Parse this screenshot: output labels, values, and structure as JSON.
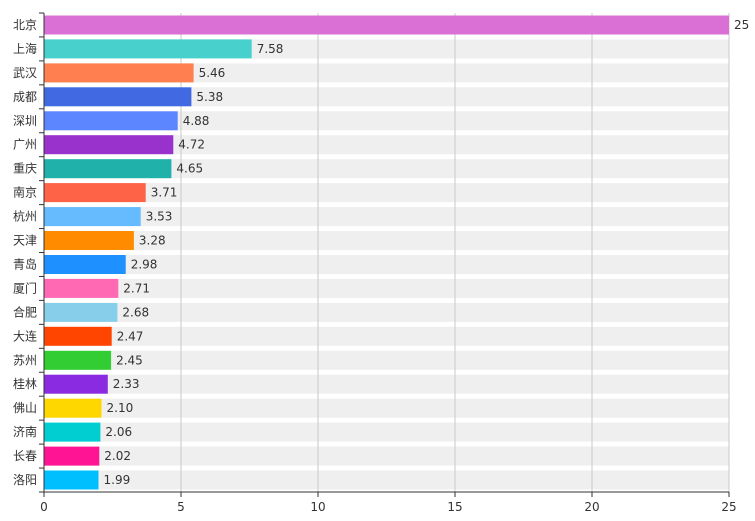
{
  "chart_data": {
    "type": "bar",
    "orientation": "horizontal",
    "categories": [
      "北京",
      "上海",
      "武汉",
      "成都",
      "深圳",
      "广州",
      "重庆",
      "南京",
      "杭州",
      "天津",
      "青岛",
      "厦门",
      "合肥",
      "大连",
      "苏州",
      "桂林",
      "佛山",
      "济南",
      "长春",
      "洛阳"
    ],
    "values": [
      25,
      7.58,
      5.46,
      5.38,
      4.88,
      4.72,
      4.65,
      3.71,
      3.53,
      3.28,
      2.98,
      2.71,
      2.68,
      2.47,
      2.45,
      2.33,
      2.1,
      2.06,
      2.02,
      1.99
    ],
    "value_labels": [
      "25",
      "7.58",
      "5.46",
      "5.38",
      "4.88",
      "4.72",
      "4.65",
      "3.71",
      "3.53",
      "3.28",
      "2.98",
      "2.71",
      "2.68",
      "2.47",
      "2.45",
      "2.33",
      "2.10",
      "2.06",
      "2.02",
      "1.99"
    ],
    "colors": [
      "#da70d6",
      "#48d1cc",
      "#ff7f50",
      "#4169e1",
      "#5b86ff",
      "#9932cc",
      "#20b2aa",
      "#ff6347",
      "#66bbff",
      "#ff8c00",
      "#1e90ff",
      "#ff69b4",
      "#87ceeb",
      "#ff4500",
      "#32cd32",
      "#8a2be2",
      "#ffd700",
      "#00ced1",
      "#ff1493",
      "#00bfff"
    ],
    "xlim": [
      0,
      25
    ],
    "xticks": [
      0,
      5,
      10,
      15,
      20,
      25
    ],
    "xtick_labels": [
      "0",
      "5",
      "10",
      "15",
      "20",
      "25"
    ],
    "grid": true,
    "row_background": "#efefef",
    "title": "",
    "xlabel": "",
    "ylabel": ""
  }
}
